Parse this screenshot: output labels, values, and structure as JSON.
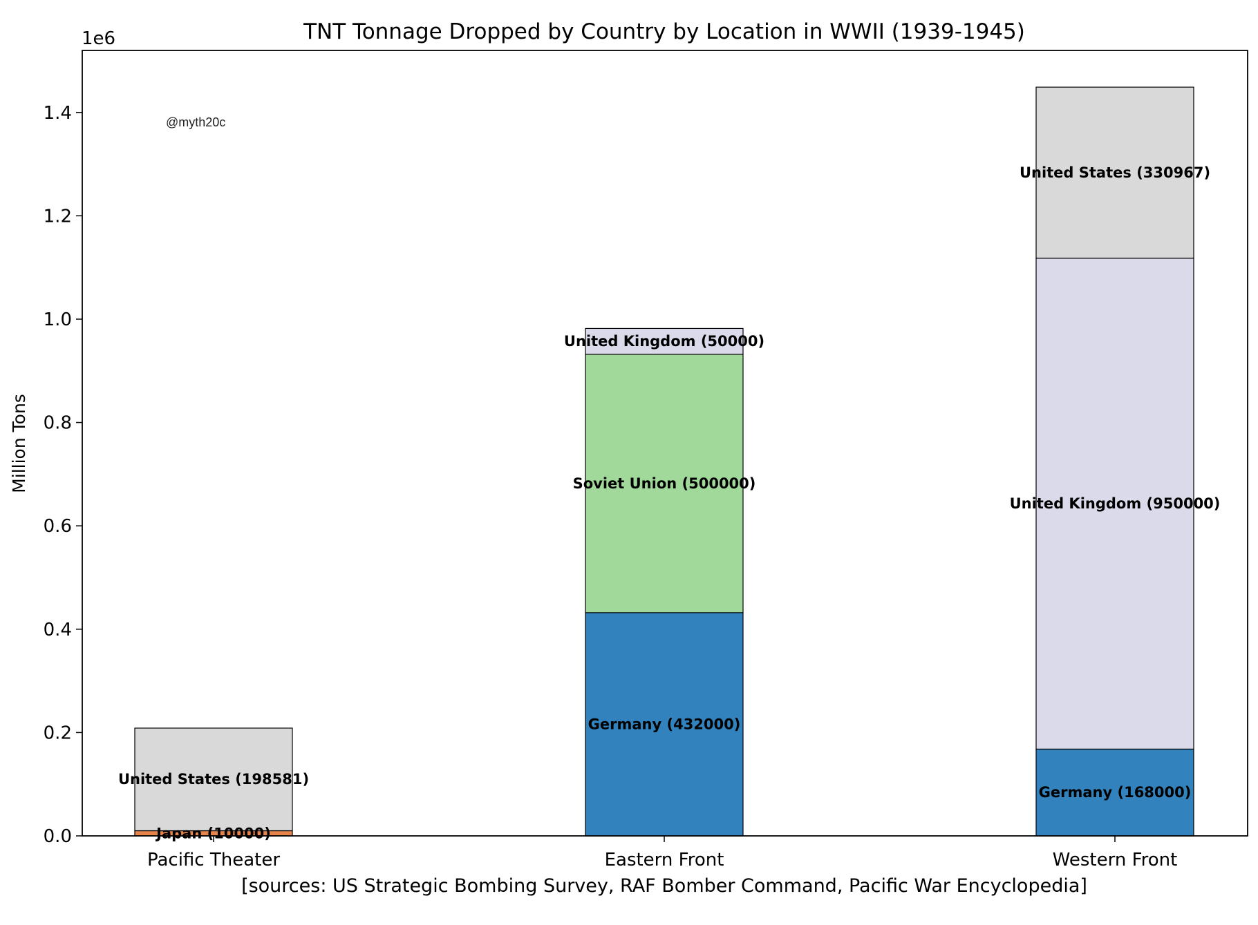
{
  "chart_data": {
    "type": "bar",
    "stacked": true,
    "title": "TNT Tonnage Dropped by Country by Location in WWII (1939-1945)",
    "xlabel": "[sources: US Strategic Bombing Survey, RAF Bomber Command, Pacific War Encyclopedia]",
    "ylabel": "Million Tons",
    "y_multiplier": "1e6",
    "ylim": [
      0,
      1520000
    ],
    "y_ticks": [
      0,
      200000,
      400000,
      600000,
      800000,
      1000000,
      1200000,
      1400000
    ],
    "y_tick_labels": [
      "0.0",
      "0.2",
      "0.4",
      "0.6",
      "0.8",
      "1.0",
      "1.2",
      "1.4"
    ],
    "categories": [
      "Pacific Theater",
      "Eastern Front",
      "Western Front"
    ],
    "watermark": "@myth20c",
    "stacks": [
      {
        "category": "Pacific Theater",
        "segments": [
          {
            "country": "Japan",
            "value": 10000,
            "color": "#e6844a",
            "label": "Japan (10000)"
          },
          {
            "country": "United States",
            "value": 198581,
            "color": "#d9d9d9",
            "label": "United States (198581)"
          }
        ]
      },
      {
        "category": "Eastern Front",
        "segments": [
          {
            "country": "Germany",
            "value": 432000,
            "color": "#3182bd",
            "label": "Germany (432000)"
          },
          {
            "country": "Soviet Union",
            "value": 500000,
            "color": "#a1d99b",
            "label": "Soviet Union (500000)"
          },
          {
            "country": "United Kingdom",
            "value": 50000,
            "color": "#dadaeb",
            "label": "United Kingdom (50000)"
          }
        ]
      },
      {
        "category": "Western Front",
        "segments": [
          {
            "country": "Germany",
            "value": 168000,
            "color": "#3182bd",
            "label": "Germany (168000)"
          },
          {
            "country": "United Kingdom",
            "value": 950000,
            "color": "#dadaeb",
            "label": "United Kingdom (950000)"
          },
          {
            "country": "United States",
            "value": 330967,
            "color": "#d9d9d9",
            "label": "United States (330967)"
          }
        ]
      }
    ]
  }
}
